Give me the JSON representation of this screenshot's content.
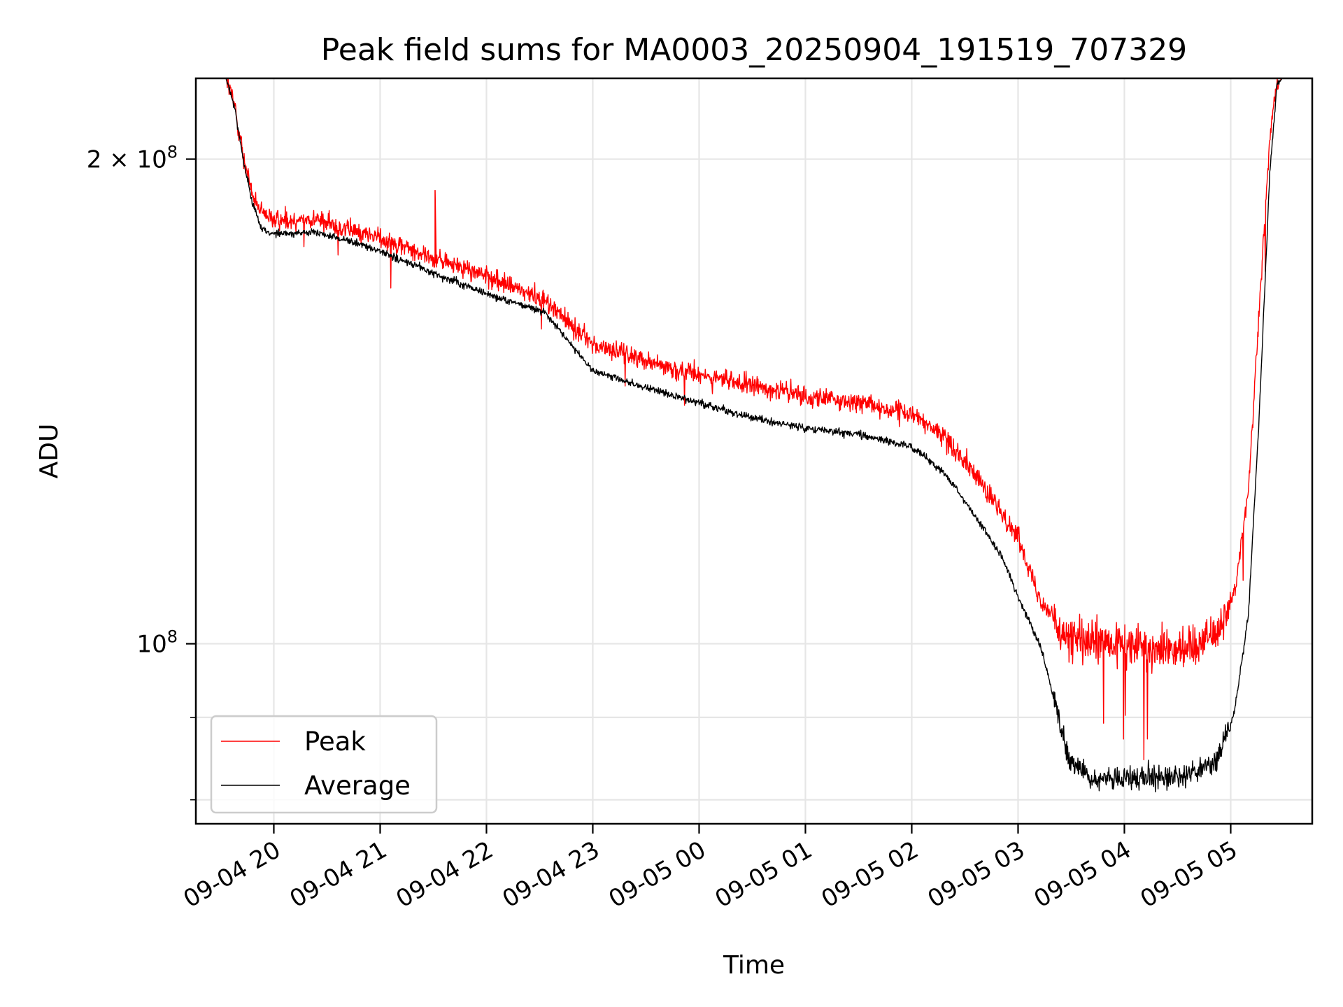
{
  "chart_data": {
    "type": "line",
    "title": "Peak field sums for MA0003_20250904_191519_707329",
    "xlabel": "Time",
    "ylabel": "ADU",
    "yscale": "log",
    "ylim": [
      77300000,
      224500000
    ],
    "xlim": [
      "2025-09-04 19:16",
      "2025-09-05 05:46"
    ],
    "grid": true,
    "x_ticks": [
      {
        "t": "2025-09-04 20:00",
        "label": "09-04 20"
      },
      {
        "t": "2025-09-04 21:00",
        "label": "09-04 21"
      },
      {
        "t": "2025-09-04 22:00",
        "label": "09-04 22"
      },
      {
        "t": "2025-09-04 23:00",
        "label": "09-04 23"
      },
      {
        "t": "2025-09-05 00:00",
        "label": "09-05 00"
      },
      {
        "t": "2025-09-05 01:00",
        "label": "09-05 01"
      },
      {
        "t": "2025-09-05 02:00",
        "label": "09-05 02"
      },
      {
        "t": "2025-09-05 03:00",
        "label": "09-05 03"
      },
      {
        "t": "2025-09-05 04:00",
        "label": "09-05 04"
      },
      {
        "t": "2025-09-05 05:00",
        "label": "09-05 05"
      }
    ],
    "y_major_ticks": [
      {
        "v": 100000000,
        "base": "10",
        "exp": "8",
        "mant": ""
      },
      {
        "v": 200000000,
        "base": "10",
        "exp": "8",
        "mant": "2 × "
      }
    ],
    "y_minor_ticks": [
      80000000,
      90000000
    ],
    "legend": {
      "position": "lower-left",
      "entries": [
        "Peak",
        "Average"
      ]
    },
    "series": [
      {
        "name": "Peak",
        "color": "#ff0000",
        "noise": 0.022,
        "trough_noise": 0.05,
        "points": [
          [
            "2025-09-04 19:16",
            224500000
          ],
          [
            "2025-09-04 19:33",
            224500000
          ],
          [
            "2025-09-04 19:38",
            216000000
          ],
          [
            "2025-09-04 19:43",
            200000000
          ],
          [
            "2025-09-04 19:48",
            190000000
          ],
          [
            "2025-09-04 19:53",
            184800000
          ],
          [
            "2025-09-04 20:00",
            183300000
          ],
          [
            "2025-09-04 20:23",
            183700000
          ],
          [
            "2025-09-04 20:43",
            180600000
          ],
          [
            "2025-09-04 21:00",
            178800000
          ],
          [
            "2025-09-04 21:31",
            173500000
          ],
          [
            "2025-09-04 22:00",
            169200000
          ],
          [
            "2025-09-04 22:33",
            163400000
          ],
          [
            "2025-09-04 23:00",
            153400000
          ],
          [
            "2025-09-04 23:30",
            150100000
          ],
          [
            "2025-09-05 00:00",
            146800000
          ],
          [
            "2025-09-05 00:30",
            144700000
          ],
          [
            "2025-09-05 01:00",
            142500000
          ],
          [
            "2025-09-05 01:30",
            141100000
          ],
          [
            "2025-09-05 02:00",
            138800000
          ],
          [
            "2025-09-05 02:18",
            134500000
          ],
          [
            "2025-09-05 02:30",
            130200000
          ],
          [
            "2025-09-05 02:50",
            120700000
          ],
          [
            "2025-09-05 03:00",
            116600000
          ],
          [
            "2025-09-05 03:13",
            106300000
          ],
          [
            "2025-09-05 03:29",
            100600000
          ],
          [
            "2025-09-05 03:57",
            99600000
          ],
          [
            "2025-09-05 04:36",
            99600000
          ],
          [
            "2025-09-05 04:52",
            101600000
          ],
          [
            "2025-09-05 05:02",
            107400000
          ],
          [
            "2025-09-05 05:10",
            124700000
          ],
          [
            "2025-09-05 05:16",
            160100000
          ],
          [
            "2025-09-05 05:22",
            205800000
          ],
          [
            "2025-09-05 05:26",
            222800000
          ],
          [
            "2025-09-05 05:29",
            224500000
          ],
          [
            "2025-09-05 05:46",
            224500000
          ]
        ],
        "spike": [
          "2025-09-04 21:31",
          191300000
        ]
      },
      {
        "name": "Average",
        "color": "#000000",
        "noise": 0.008,
        "trough_noise": 0.025,
        "points": [
          [
            "2025-09-04 19:16",
            224500000
          ],
          [
            "2025-09-04 19:33",
            224500000
          ],
          [
            "2025-09-04 19:38",
            215000000
          ],
          [
            "2025-09-04 19:43",
            199000000
          ],
          [
            "2025-09-04 19:48",
            188000000
          ],
          [
            "2025-09-04 19:53",
            181100000
          ],
          [
            "2025-09-04 20:00",
            179700000
          ],
          [
            "2025-09-04 20:23",
            180000000
          ],
          [
            "2025-09-04 20:43",
            177900000
          ],
          [
            "2025-09-04 21:00",
            175200000
          ],
          [
            "2025-09-04 21:31",
            169700000
          ],
          [
            "2025-09-04 22:00",
            165000000
          ],
          [
            "2025-09-04 22:33",
            160600000
          ],
          [
            "2025-09-04 23:00",
            147800000
          ],
          [
            "2025-09-04 23:30",
            144200000
          ],
          [
            "2025-09-05 00:00",
            141100000
          ],
          [
            "2025-09-05 00:30",
            138200000
          ],
          [
            "2025-09-05 01:00",
            136100000
          ],
          [
            "2025-09-05 01:30",
            134900000
          ],
          [
            "2025-09-05 02:00",
            132500000
          ],
          [
            "2025-09-05 02:18",
            127900000
          ],
          [
            "2025-09-05 02:30",
            122600000
          ],
          [
            "2025-09-05 02:50",
            113700000
          ],
          [
            "2025-09-05 03:00",
            107000000
          ],
          [
            "2025-09-05 03:13",
            99400000
          ],
          [
            "2025-09-05 03:29",
            84500000
          ],
          [
            "2025-09-05 03:41",
            82600000
          ],
          [
            "2025-09-05 04:00",
            82400000
          ],
          [
            "2025-09-05 04:36",
            82800000
          ],
          [
            "2025-09-05 04:52",
            84500000
          ],
          [
            "2025-09-05 05:02",
            90600000
          ],
          [
            "2025-09-05 05:10",
            104200000
          ],
          [
            "2025-09-05 05:16",
            137800000
          ],
          [
            "2025-09-05 05:22",
            195600000
          ],
          [
            "2025-09-05 05:26",
            222000000
          ],
          [
            "2025-09-05 05:29",
            224500000
          ],
          [
            "2025-09-05 05:46",
            224500000
          ]
        ]
      }
    ]
  }
}
